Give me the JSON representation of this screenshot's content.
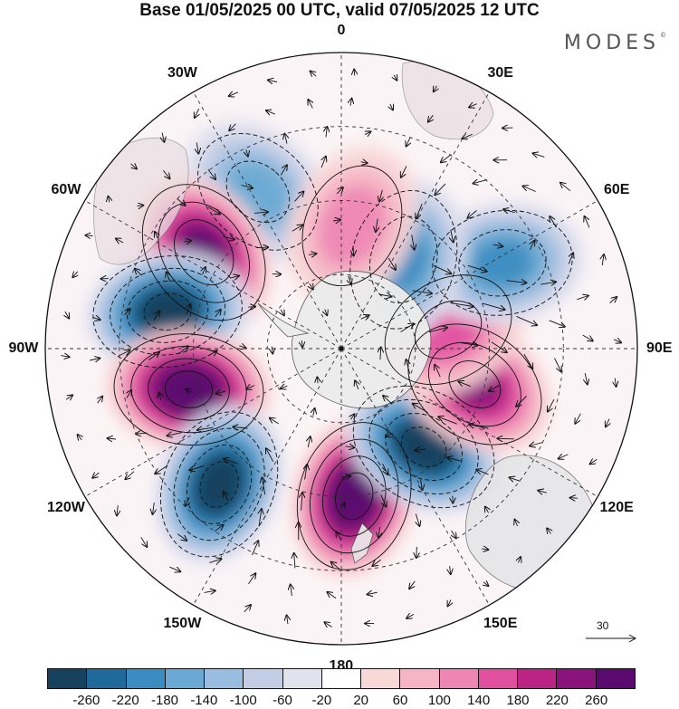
{
  "title": "Base 01/05/2025 00 UTC, valid 07/05/2025 12 UTC",
  "brand": "MODES",
  "brand_mark": "©",
  "longitude_labels": [
    {
      "text": "0",
      "lon": 0
    },
    {
      "text": "30E",
      "lon": 30
    },
    {
      "text": "60E",
      "lon": 60
    },
    {
      "text": "90E",
      "lon": 90
    },
    {
      "text": "120E",
      "lon": 120
    },
    {
      "text": "150E",
      "lon": 150
    },
    {
      "text": "180",
      "lon": 180
    },
    {
      "text": "150W",
      "lon": -150
    },
    {
      "text": "120W",
      "lon": -120
    },
    {
      "text": "90W",
      "lon": -90
    },
    {
      "text": "60W",
      "lon": -60
    },
    {
      "text": "30W",
      "lon": -30
    }
  ],
  "reference_vector_label": "30",
  "colorbar": {
    "labels": [
      "-260",
      "-220",
      "-180",
      "-140",
      "-100",
      "-60",
      "-20",
      "20",
      "60",
      "100",
      "140",
      "180",
      "220",
      "260"
    ],
    "colors": [
      "#16425f",
      "#1f6a9a",
      "#3b8cc0",
      "#6aa9d3",
      "#99bde0",
      "#c3cde5",
      "#e2e2ef",
      "#ffffff",
      "#f9d8d8",
      "#f5b5c4",
      "#ee86b4",
      "#e1509f",
      "#bb2384",
      "#8a137b",
      "#5a0a6e"
    ]
  },
  "anomaly_centers": [
    {
      "lon": -28,
      "colat": 36,
      "level": "-100"
    },
    {
      "lon": -55,
      "colat": 34,
      "level": "220"
    },
    {
      "lon": -78,
      "colat": 36,
      "level": "-260"
    },
    {
      "lon": -105,
      "colat": 32,
      "level": "260"
    },
    {
      "lon": -138,
      "colat": 37,
      "level": "-260"
    },
    {
      "lon": 175,
      "colat": 30,
      "level": "260"
    },
    {
      "lon": 140,
      "colat": 26,
      "level": "-260"
    },
    {
      "lon": 105,
      "colat": 28,
      "level": "180"
    },
    {
      "lon": 80,
      "colat": 22,
      "level": "100"
    },
    {
      "lon": 62,
      "colat": 37,
      "level": "-140"
    },
    {
      "lon": 35,
      "colat": 22,
      "level": "-140"
    },
    {
      "lon": 5,
      "colat": 25,
      "level": "60"
    }
  ]
}
